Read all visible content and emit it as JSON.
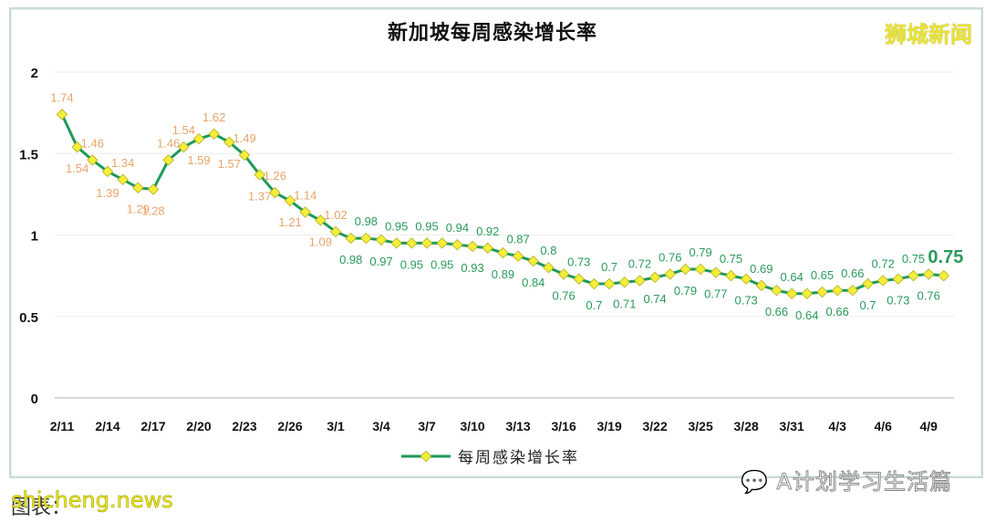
{
  "title": "新加坡每周感染增长率",
  "brand_watermark": "狮城新闻",
  "legend_label": "每周感染增长率",
  "footer_source_prefix": "图表：",
  "footer_watermark": "shicheng.news",
  "wechat_watermark": "A计划学习生活篇",
  "colors": {
    "line": "#1e9a5a",
    "marker": "#f2ee3a",
    "label_high": "#e8a46a",
    "label_low": "#2a9a5a",
    "axis_text": "#111111",
    "gridline": "#eeeeee"
  },
  "chart_data": {
    "type": "line",
    "title": "新加坡每周感染增长率",
    "xlabel": "",
    "ylabel": "",
    "ylim": [
      0,
      2
    ],
    "yticks": [
      0,
      0.5,
      1,
      1.5,
      2
    ],
    "grid": true,
    "legend_position": "bottom",
    "xtick_labels": [
      "2/11",
      "2/14",
      "2/17",
      "2/20",
      "2/23",
      "2/26",
      "3/1",
      "3/4",
      "3/7",
      "3/10",
      "3/13",
      "3/16",
      "3/19",
      "3/22",
      "3/25",
      "3/28",
      "3/31",
      "4/3",
      "4/6",
      "4/9"
    ],
    "x": [
      "2/11",
      "2/12",
      "2/13",
      "2/14",
      "2/15",
      "2/16",
      "2/17",
      "2/18",
      "2/19",
      "2/20",
      "2/21",
      "2/22",
      "2/23",
      "2/24",
      "2/25",
      "2/26",
      "2/27",
      "2/28",
      "3/1",
      "3/2",
      "3/3",
      "3/4",
      "3/5",
      "3/6",
      "3/7",
      "3/8",
      "3/9",
      "3/10",
      "3/11",
      "3/12",
      "3/13",
      "3/14",
      "3/15",
      "3/16",
      "3/17",
      "3/18",
      "3/19",
      "3/20",
      "3/21",
      "3/22",
      "3/23",
      "3/24",
      "3/25",
      "3/26",
      "3/27",
      "3/28",
      "3/29",
      "3/30",
      "3/31",
      "4/1",
      "4/2",
      "4/3",
      "4/4",
      "4/5",
      "4/6",
      "4/7",
      "4/8",
      "4/9",
      "4/10"
    ],
    "series": [
      {
        "name": "每周感染增长率",
        "values": [
          1.74,
          1.54,
          1.46,
          1.39,
          1.34,
          1.29,
          1.28,
          1.46,
          1.54,
          1.59,
          1.62,
          1.57,
          1.49,
          1.37,
          1.26,
          1.21,
          1.14,
          1.09,
          1.02,
          0.98,
          0.98,
          0.97,
          0.95,
          0.95,
          0.95,
          0.95,
          0.94,
          0.93,
          0.92,
          0.89,
          0.87,
          0.84,
          0.8,
          0.76,
          0.73,
          0.7,
          0.7,
          0.71,
          0.72,
          0.74,
          0.76,
          0.79,
          0.79,
          0.77,
          0.75,
          0.73,
          0.69,
          0.66,
          0.64,
          0.64,
          0.65,
          0.66,
          0.66,
          0.7,
          0.72,
          0.73,
          0.75,
          0.76,
          0.75
        ],
        "label_pos": [
          "a",
          "b",
          "a",
          "b",
          "a",
          "b",
          "b",
          "a",
          "a",
          "b",
          "a",
          "b",
          "a",
          "b",
          "a",
          "b",
          "a",
          "b",
          "a",
          "b",
          "a",
          "b",
          "a",
          "b",
          "a",
          "b",
          "a",
          "b",
          "a",
          "b",
          "a",
          "b",
          "a",
          "b",
          "a",
          "b",
          "a",
          "b",
          "a",
          "b",
          "a",
          "b",
          "a",
          "b",
          "a",
          "b",
          "a",
          "b",
          "a",
          "b",
          "a",
          "b",
          "a",
          "b",
          "a",
          "b",
          "a",
          "b",
          "big"
        ]
      }
    ]
  }
}
